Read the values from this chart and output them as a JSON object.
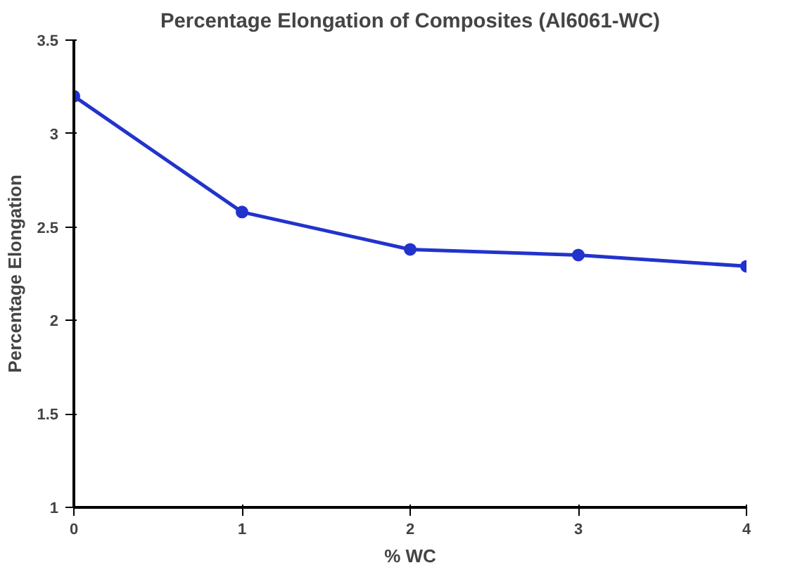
{
  "chart_data": {
    "type": "line",
    "title": "Percentage Elongation of Composites (Al6061-WC)",
    "xlabel": "% WC",
    "ylabel": "Percentage Elongation",
    "x": [
      0,
      1,
      2,
      3,
      4
    ],
    "series": [
      {
        "color": "#2233cc",
        "values": [
          3.2,
          2.58,
          2.38,
          2.35,
          2.29
        ]
      }
    ],
    "xlim": [
      0,
      4
    ],
    "ylim": [
      1,
      3.5
    ],
    "xticks": [
      0,
      1,
      2,
      3,
      4
    ],
    "yticks": [
      1,
      1.5,
      2,
      2.5,
      3,
      3.5
    ],
    "grid": false,
    "marker": "circle",
    "line_style": "solid"
  }
}
